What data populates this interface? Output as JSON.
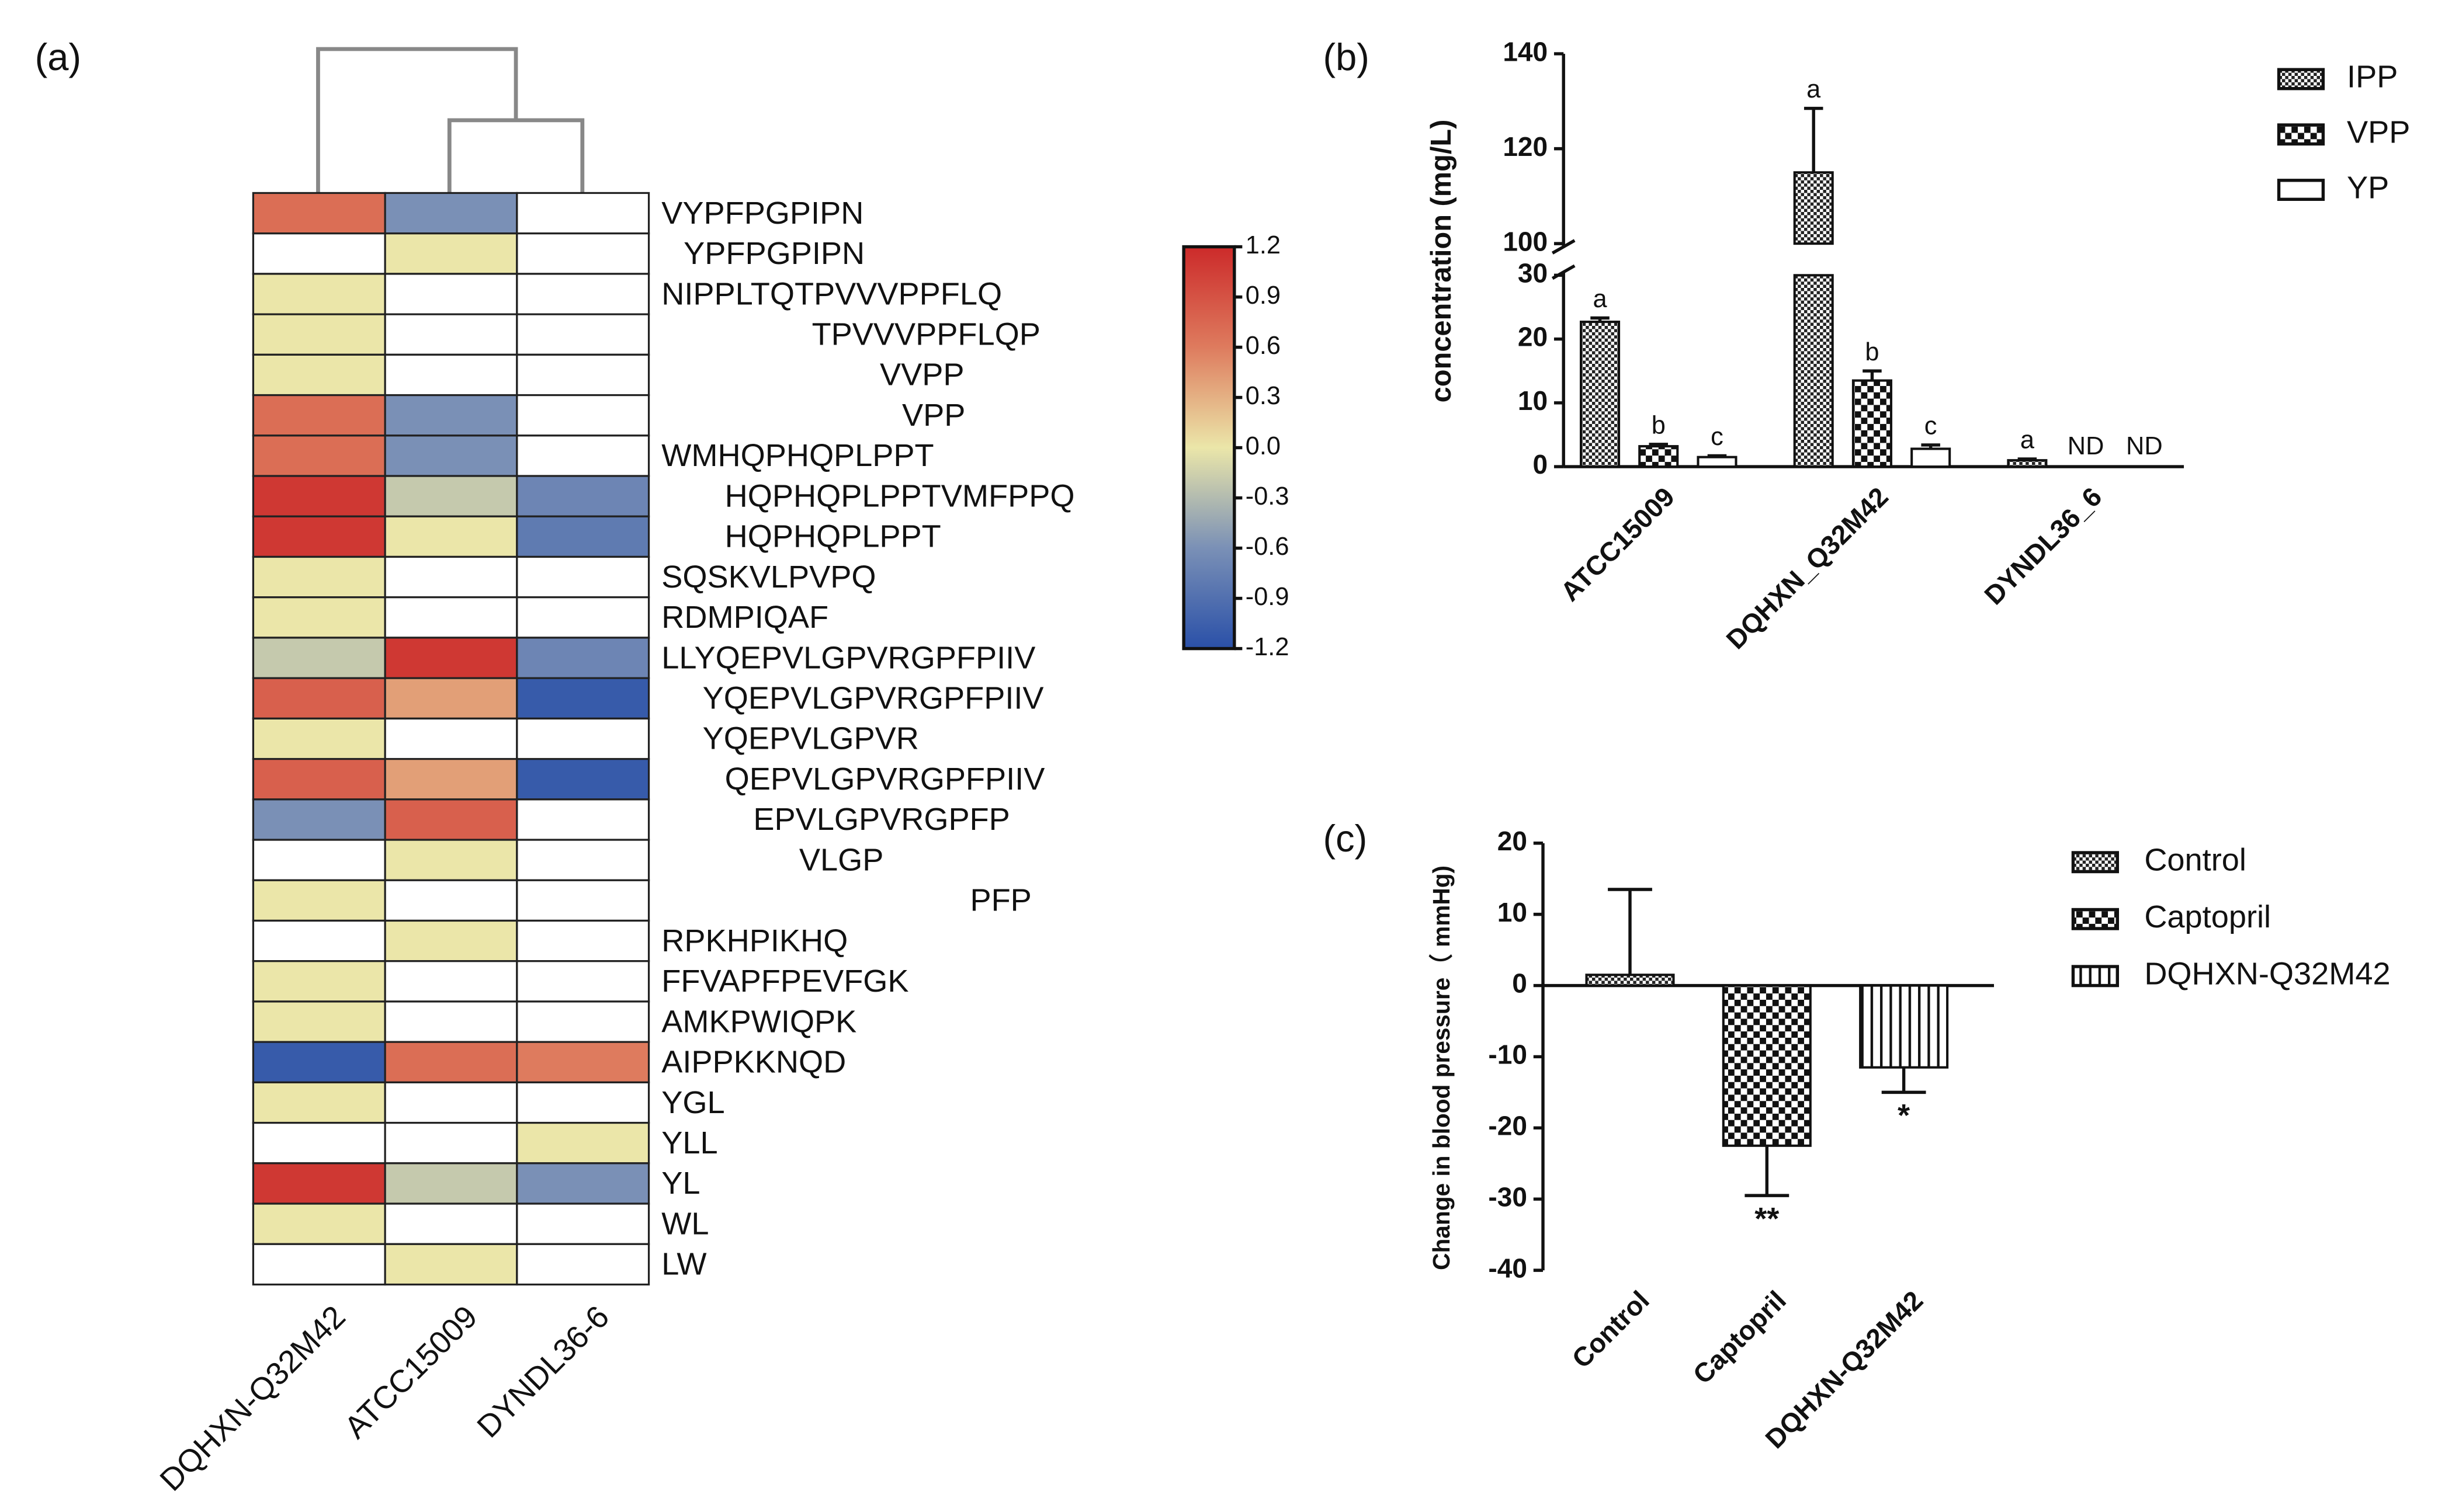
{
  "chart_data": [
    {
      "type": "heatmap",
      "panel_label": "(a)",
      "rows": [
        "VYPFPGPIPN",
        "YPFPGPIPN",
        "NIPPLTQTPVVVPPFLQ",
        "TPVVVPPFLQP",
        "VVPP",
        "VPP",
        "WMHQPHQPLPPT",
        "HQPHQPLPPTVMFPPQ",
        "HQPHQPLPPT",
        "SQSKVLPVPQ",
        "RDMPIQAF",
        "LLYQEPVLGPVRGPFPIIV",
        "YQEPVLGPVRGPFPIIV",
        "YQEPVLGPVR",
        "QEPVLGPVRGPFPIIV",
        "EPVLGPVRGPFP",
        "VLGP",
        "PFP",
        "RPKHPIKHQ",
        "FFVAPFPEVFGK",
        "AMKPWIQPK",
        "AIPPKKNQD",
        "YGL",
        "YLL",
        "YL",
        "WL",
        "LW"
      ],
      "columns": [
        "DQHXN-Q32M42",
        "ATCC15009",
        "DYNDL36-6"
      ],
      "values": [
        [
          0.7,
          -0.6,
          null
        ],
        [
          null,
          0,
          null
        ],
        [
          0,
          null,
          null
        ],
        [
          0,
          null,
          null
        ],
        [
          0,
          null,
          null
        ],
        [
          0.7,
          -0.6,
          null
        ],
        [
          0.7,
          -0.6,
          null
        ],
        [
          1.1,
          -0.2,
          -0.7
        ],
        [
          1.1,
          0,
          -0.8
        ],
        [
          0,
          null,
          null
        ],
        [
          0,
          null,
          null
        ],
        [
          -0.2,
          1.1,
          -0.7
        ],
        [
          0.8,
          0.4,
          -1.1
        ],
        [
          0,
          null,
          null
        ],
        [
          0.8,
          0.4,
          -1.1
        ],
        [
          -0.6,
          0.8,
          null
        ],
        [
          null,
          0,
          null
        ],
        [
          0,
          null,
          null
        ],
        [
          null,
          0,
          null
        ],
        [
          0,
          null,
          null
        ],
        [
          0,
          null,
          null
        ],
        [
          -1.1,
          0.7,
          0.6
        ],
        [
          0,
          null,
          null
        ],
        [
          null,
          null,
          0
        ],
        [
          1.1,
          -0.2,
          -0.6
        ],
        [
          0,
          null,
          null
        ],
        [
          null,
          0,
          null
        ]
      ],
      "colorbar_lim": [
        -1.2,
        1.2
      ],
      "colorbar_ticks": [
        1.2,
        0.9,
        0.6,
        0.3,
        {
          "value": 0,
          "label": "0.0"
        },
        -0.3,
        -0.6,
        -0.9,
        -1.2
      ],
      "colormap": [
        "#2a50a8",
        "#7a90b6",
        "#ebe6a9",
        "#de7b5e",
        "#cc2a2a"
      ],
      "dendrogram": true
    },
    {
      "type": "bar",
      "panel_label": "(b)",
      "ylabel": "concentration (mg/L)",
      "categories": [
        "ATCC15009",
        "DQHXN_Q32M42",
        "DYNDL36_6"
      ],
      "series": [
        {
          "name": "IPP",
          "pattern": "fine-check",
          "values": [
            22.7,
            115,
            1.0
          ],
          "errors": [
            0.6,
            13.5,
            0.2
          ],
          "labels": [
            "a",
            "a",
            "a"
          ]
        },
        {
          "name": "VPP",
          "pattern": "checker",
          "values": [
            3.2,
            13.5,
            null
          ],
          "errors": [
            0.3,
            1.5,
            null
          ],
          "labels": [
            "b",
            "b",
            "ND"
          ]
        },
        {
          "name": "YP",
          "pattern": "white",
          "values": [
            1.5,
            2.8,
            null
          ],
          "errors": [
            0.2,
            0.6,
            null
          ],
          "labels": [
            "c",
            "c",
            "ND"
          ]
        }
      ],
      "ylim": [
        0,
        140
      ],
      "ybreak": [
        30,
        100
      ],
      "yticks": [
        0,
        10,
        20,
        30,
        100,
        120,
        140
      ],
      "legend": "top-right"
    },
    {
      "type": "bar",
      "panel_label": "(c)",
      "ylabel": "Change in blood pressure（ mmHg)",
      "categories": [
        "Control",
        "Captopril",
        "DQHXN-Q32M42"
      ],
      "values": [
        1.5,
        -22.5,
        -11.5
      ],
      "errors": [
        12,
        7,
        3.5
      ],
      "labels": [
        null,
        "**",
        "*"
      ],
      "patterns": [
        "fine-check",
        "checker",
        "vertical-stripes"
      ],
      "ylim": [
        -40,
        20
      ],
      "yticks": [
        -40,
        -30,
        -20,
        -10,
        0,
        10,
        20
      ],
      "legend": "top-right"
    }
  ]
}
